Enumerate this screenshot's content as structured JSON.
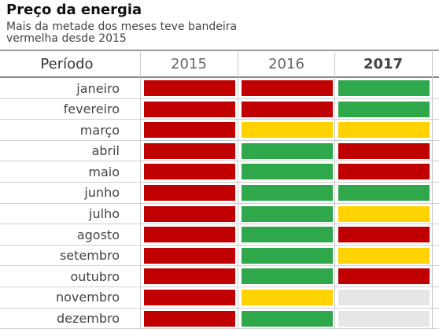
{
  "title": "Preço da energia",
  "subtitle": "Mais da metade dos meses teve bandeira vermelha desde 2015",
  "chart_data": {
    "type": "table",
    "header": {
      "row_label": "Período",
      "years": [
        "2015",
        "2016",
        "2017"
      ],
      "bold_year": "2017"
    },
    "colors": {
      "vermelha": "#c00000",
      "amarela": "#ffd200",
      "verde": "#2ea84b",
      "sem_dados": "#e6e6e6"
    },
    "rows": [
      {
        "month": "janeiro",
        "flags": [
          "vermelha",
          "vermelha",
          "verde"
        ]
      },
      {
        "month": "fevereiro",
        "flags": [
          "vermelha",
          "vermelha",
          "verde"
        ]
      },
      {
        "month": "março",
        "flags": [
          "vermelha",
          "amarela",
          "amarela"
        ]
      },
      {
        "month": "abril",
        "flags": [
          "vermelha",
          "verde",
          "vermelha"
        ]
      },
      {
        "month": "maio",
        "flags": [
          "vermelha",
          "verde",
          "vermelha"
        ]
      },
      {
        "month": "junho",
        "flags": [
          "vermelha",
          "verde",
          "verde"
        ]
      },
      {
        "month": "julho",
        "flags": [
          "vermelha",
          "verde",
          "amarela"
        ]
      },
      {
        "month": "agosto",
        "flags": [
          "vermelha",
          "verde",
          "vermelha"
        ]
      },
      {
        "month": "setembro",
        "flags": [
          "vermelha",
          "verde",
          "amarela"
        ]
      },
      {
        "month": "outubro",
        "flags": [
          "vermelha",
          "verde",
          "vermelha"
        ]
      },
      {
        "month": "novembro",
        "flags": [
          "vermelha",
          "amarela",
          "sem_dados"
        ]
      },
      {
        "month": "dezembro",
        "flags": [
          "vermelha",
          "verde",
          "sem_dados"
        ]
      }
    ]
  }
}
